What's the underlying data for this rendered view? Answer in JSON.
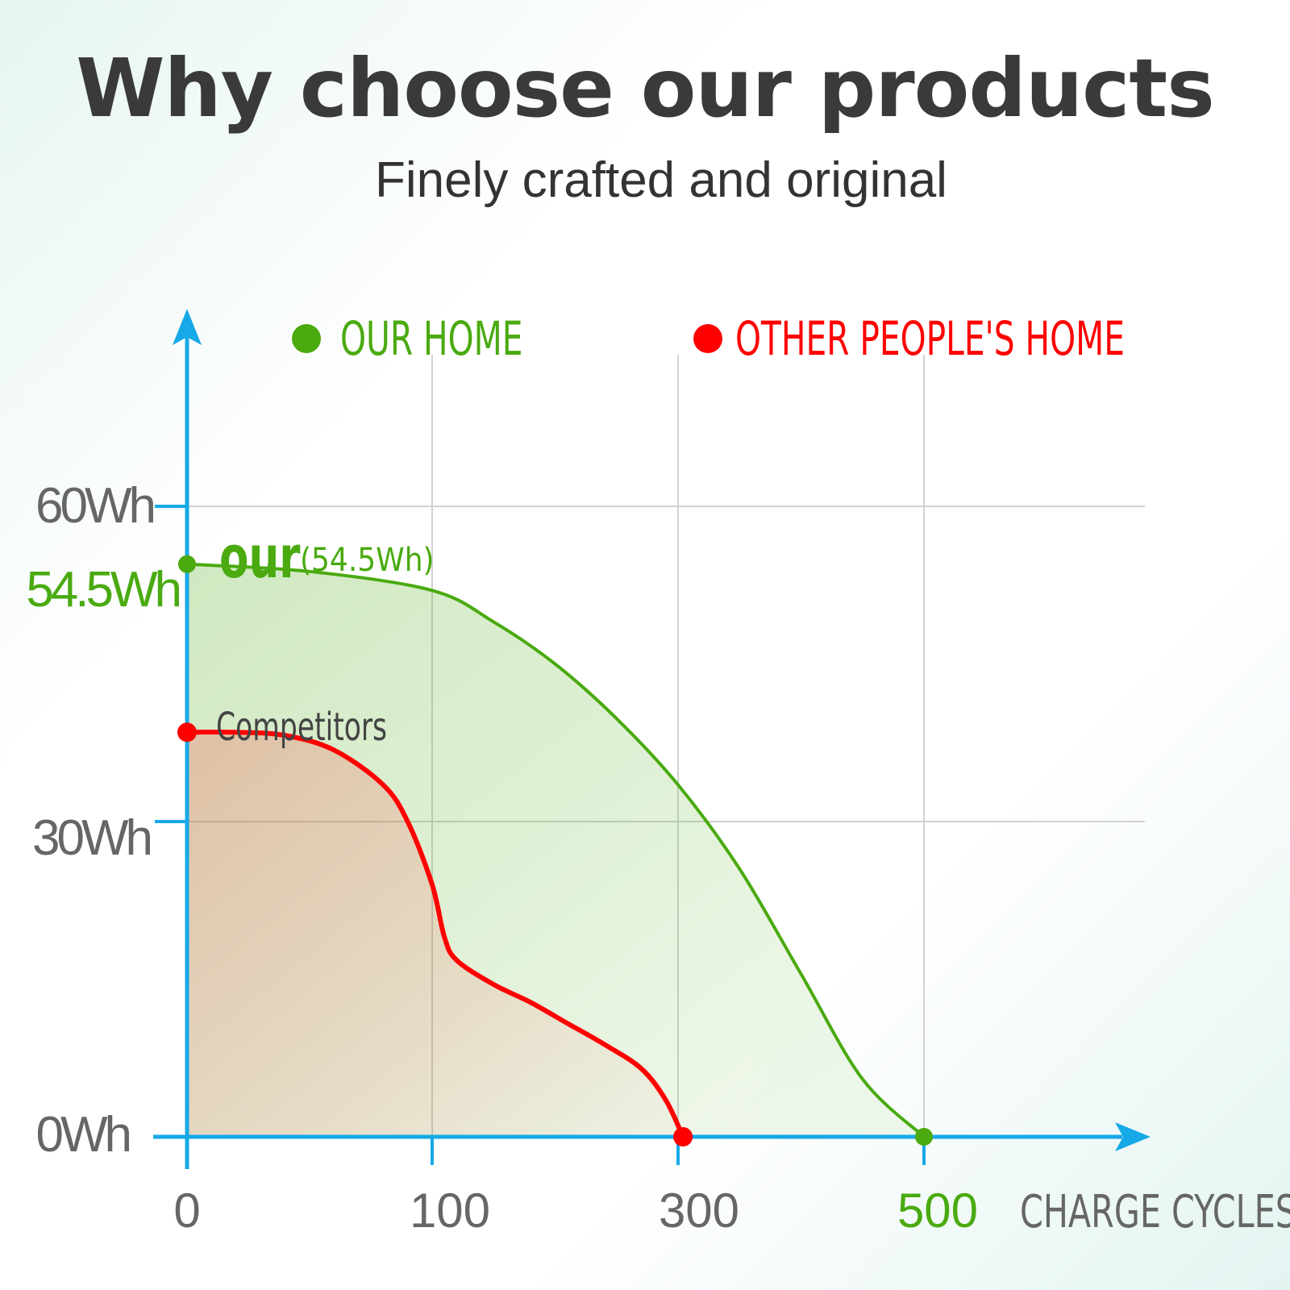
{
  "header": {
    "title": "Why choose our products",
    "subtitle": "Finely crafted and original"
  },
  "colors": {
    "axis": "#16a9e8",
    "ours": "#4aaa10",
    "others": "#ff0000",
    "grid": "#d2d2d2",
    "tick_text": "#666666"
  },
  "chart_data": {
    "type": "area",
    "xlabel": "CHARGE CYCLES",
    "ylabel": "",
    "x_ticks": [
      {
        "value": 0,
        "label": "0",
        "color": "#666666"
      },
      {
        "value": 100,
        "label": "100",
        "color": "#666666"
      },
      {
        "value": 300,
        "label": "300",
        "color": "#666666"
      },
      {
        "value": 500,
        "label": "500",
        "color": "#4aaa10"
      }
    ],
    "y_ticks": [
      {
        "value": 0,
        "label": "0Wh",
        "color": "#666666"
      },
      {
        "value": 30,
        "label": "30Wh",
        "color": "#666666"
      },
      {
        "value": 54.5,
        "label": "54.5Wh",
        "color": "#4aaa10"
      },
      {
        "value": 60,
        "label": "60Wh",
        "color": "#666666"
      }
    ],
    "legend": {
      "placement": "top",
      "entries": [
        {
          "label": "OUR HOME",
          "color": "#4aaa10"
        },
        {
          "label": "OTHER PEOPLE'S HOME",
          "color": "#ff0000"
        }
      ]
    },
    "grid": true,
    "series": [
      {
        "name": "OUR HOME",
        "label": "our",
        "annotation": "(54.5Wh)",
        "color": "#4aaa10",
        "points": [
          [
            0,
            54.5
          ],
          [
            50,
            53.8
          ],
          [
            100,
            52.0
          ],
          [
            150,
            49.0
          ],
          [
            200,
            45.0
          ],
          [
            250,
            39.8
          ],
          [
            300,
            33.5
          ],
          [
            350,
            25.5
          ],
          [
            400,
            15.5
          ],
          [
            450,
            5.5
          ],
          [
            500,
            0
          ]
        ]
      },
      {
        "name": "OTHER PEOPLE'S HOME",
        "label": "Competitors",
        "color": "#ff0000",
        "points": [
          [
            0,
            38.5
          ],
          [
            20,
            38.5
          ],
          [
            40,
            38.2
          ],
          [
            60,
            36.8
          ],
          [
            80,
            33.5
          ],
          [
            90,
            30.0
          ],
          [
            100,
            24.0
          ],
          [
            110,
            19.0
          ],
          [
            120,
            16.8
          ],
          [
            150,
            14.5
          ],
          [
            180,
            12.8
          ],
          [
            210,
            10.8
          ],
          [
            240,
            8.8
          ],
          [
            270,
            6.5
          ],
          [
            290,
            3.5
          ],
          [
            304,
            0
          ]
        ]
      }
    ]
  }
}
